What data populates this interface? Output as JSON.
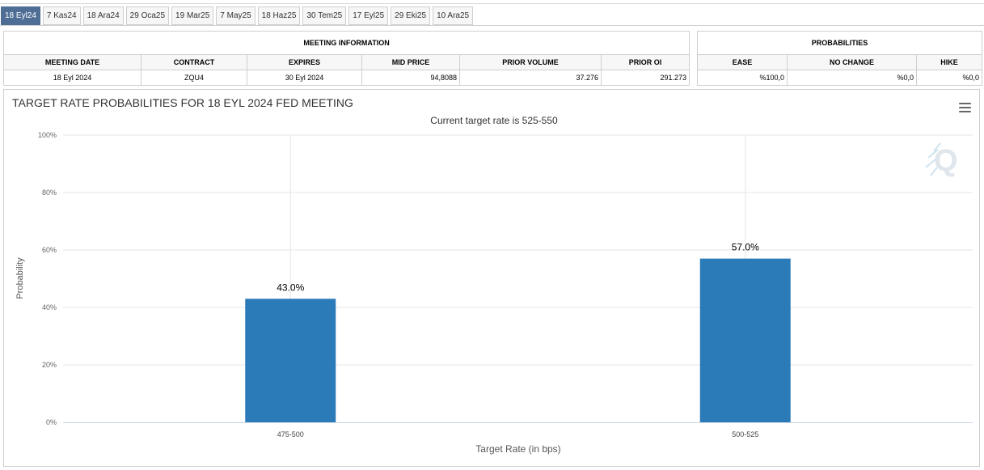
{
  "tabs": [
    "18 Eyl24",
    "7 Kas24",
    "18 Ara24",
    "29 Oca25",
    "19 Mar25",
    "7 May25",
    "18 Haz25",
    "30 Tem25",
    "17 Eyl25",
    "29 Eki25",
    "10 Ara25"
  ],
  "active_tab": 0,
  "meeting_info": {
    "title": "MEETING INFORMATION",
    "headers": {
      "meeting_date": "MEETING DATE",
      "contract": "CONTRACT",
      "expires": "EXPIRES",
      "mid_price": "MID PRICE",
      "prior_volume": "PRIOR VOLUME",
      "prior_oi": "PRIOR OI"
    },
    "row": {
      "meeting_date": "18 Eyl 2024",
      "contract": "ZQU4",
      "expires": "30 Eyl 2024",
      "mid_price": "94,8088",
      "prior_volume": "37.276",
      "prior_oi": "291.273"
    }
  },
  "probabilities": {
    "title": "PROBABILITIES",
    "headers": {
      "ease": "EASE",
      "no_change": "NO CHANGE",
      "hike": "HIKE"
    },
    "row": {
      "ease": "%100,0",
      "no_change": "%0,0",
      "hike": "%0,0"
    }
  },
  "colors": {
    "bar": "#2b7bb9",
    "active_tab": "#4f6e95"
  },
  "chart_data": {
    "type": "bar",
    "title": "TARGET RATE PROBABILITIES FOR 18 EYL 2024 FED MEETING",
    "subtitle": "Current target rate is 525-550",
    "categories": [
      "475-500",
      "500-525"
    ],
    "values": [
      43.0,
      57.0
    ],
    "data_labels": [
      "43.0%",
      "57.0%"
    ],
    "xlabel": "Target Rate (in bps)",
    "ylabel": "Probability",
    "ylim": [
      0,
      100
    ],
    "yticks": [
      0,
      20,
      40,
      60,
      80,
      100
    ],
    "ytick_labels": [
      "0%",
      "20%",
      "40%",
      "60%",
      "80%",
      "100%"
    ],
    "grid": true,
    "logo": "Q"
  }
}
